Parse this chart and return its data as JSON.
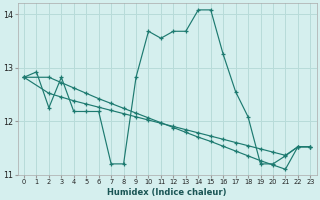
{
  "xlabel": "Humidex (Indice chaleur)",
  "xlim": [
    -0.5,
    23.5
  ],
  "ylim": [
    11,
    14.2
  ],
  "yticks": [
    11,
    12,
    13,
    14
  ],
  "xticks": [
    0,
    1,
    2,
    3,
    4,
    5,
    6,
    7,
    8,
    9,
    10,
    11,
    12,
    13,
    14,
    15,
    16,
    17,
    18,
    19,
    20,
    21,
    22,
    23
  ],
  "bg_color": "#d5efee",
  "grid_color": "#b8dbd9",
  "line_color": "#1d7a70",
  "series1_x": [
    0,
    1,
    2,
    3,
    4,
    5,
    6,
    7,
    8,
    9,
    10,
    11,
    12,
    13,
    14,
    15,
    16,
    17,
    18,
    19,
    20,
    21,
    22,
    23
  ],
  "series1_y": [
    12.82,
    12.92,
    12.25,
    12.82,
    12.18,
    12.18,
    12.18,
    11.2,
    11.2,
    12.82,
    13.68,
    13.55,
    13.68,
    13.68,
    14.08,
    14.08,
    13.25,
    12.55,
    12.08,
    11.2,
    11.2,
    11.35,
    11.52,
    11.52
  ],
  "series2_x": [
    0,
    2,
    3,
    4,
    5,
    6,
    7,
    8,
    9,
    10,
    11,
    12,
    13,
    14,
    15,
    16,
    17,
    18,
    19,
    20,
    21,
    22,
    23
  ],
  "series2_y": [
    12.82,
    12.82,
    12.72,
    12.62,
    12.52,
    12.42,
    12.33,
    12.24,
    12.15,
    12.06,
    11.97,
    11.88,
    11.79,
    11.7,
    11.62,
    11.53,
    11.44,
    11.35,
    11.26,
    11.18,
    11.1,
    11.52,
    11.52
  ],
  "series3_x": [
    0,
    2,
    3,
    4,
    5,
    6,
    7,
    8,
    9,
    10,
    11,
    12,
    13,
    14,
    15,
    16,
    17,
    18,
    19,
    20,
    21,
    22,
    23
  ],
  "series3_y": [
    12.82,
    12.52,
    12.45,
    12.38,
    12.32,
    12.26,
    12.2,
    12.14,
    12.08,
    12.02,
    11.96,
    11.9,
    11.84,
    11.78,
    11.72,
    11.66,
    11.6,
    11.54,
    11.48,
    11.42,
    11.36,
    11.52,
    11.52
  ]
}
